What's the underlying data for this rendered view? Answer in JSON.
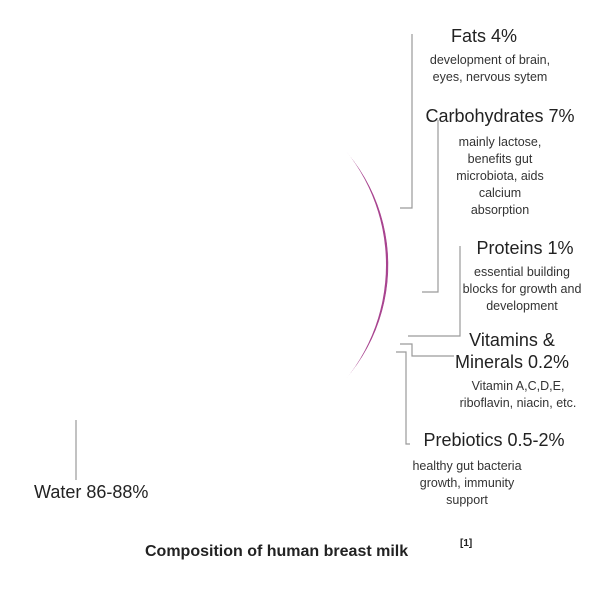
{
  "chart_data": {
    "type": "pie",
    "title": "Composition of human breast milk",
    "title_reference": "[1]",
    "series": [
      {
        "name": "Fats 4%",
        "value": 4,
        "color": "#fbb07e",
        "description": [
          "development of brain,",
          "eyes, nervous sytem"
        ]
      },
      {
        "name": "Carbohydrates 7%",
        "value": 7,
        "color": "#f6866e",
        "description": [
          "mainly lactose,",
          "benefits gut",
          "microbiota, aids",
          "calcium",
          "absorption"
        ]
      },
      {
        "name": "Proteins 1%",
        "value": 1,
        "color": "#ec7884",
        "description": [
          "essential building",
          "blocks for growth and",
          "development"
        ]
      },
      {
        "name": "Vitamins & Minerals 0.2%",
        "name_lines": [
          "Vitamins &",
          "Minerals 0.2%"
        ],
        "value": 0.2,
        "color": "#d4628f",
        "description": [
          "Vitamin A,C,D,E,",
          "riboflavin, niacin, etc."
        ]
      },
      {
        "name": "Prebiotics 0.5-2%",
        "value": 1.2,
        "color": "#c14f93",
        "description": [
          "healthy gut bacteria",
          "growth, immunity",
          "support"
        ]
      },
      {
        "name": "Water 86-88%",
        "value": 86.6,
        "color": "#a8438f",
        "description": []
      }
    ]
  }
}
